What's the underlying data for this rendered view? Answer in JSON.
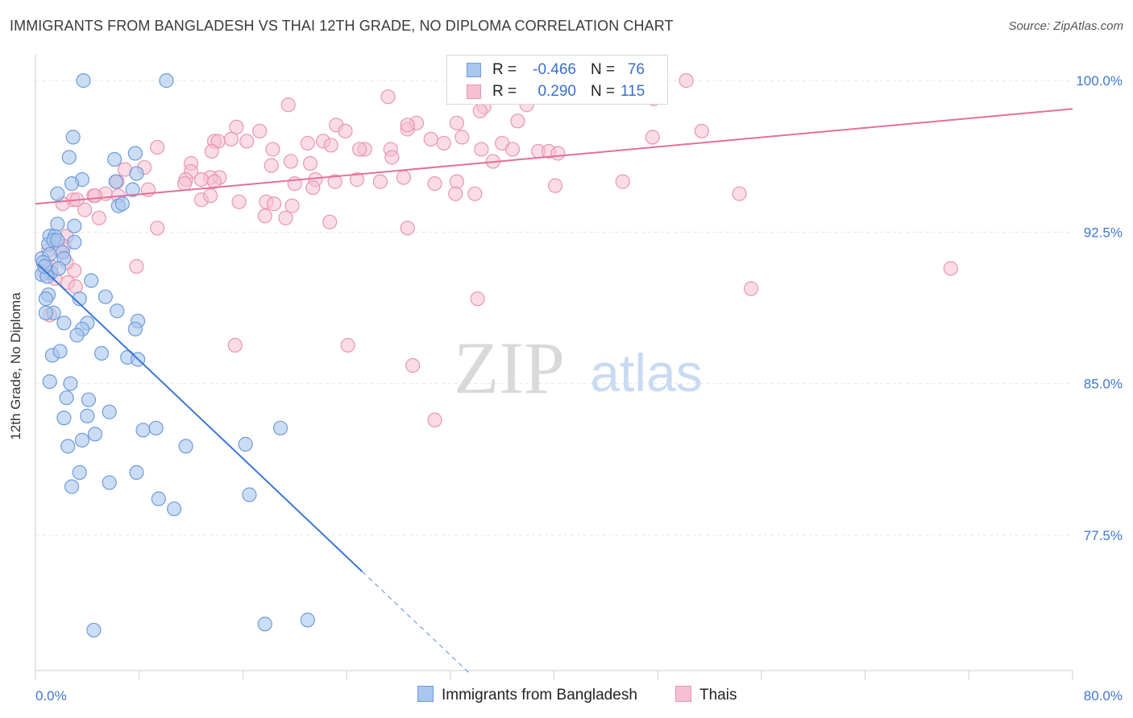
{
  "title": "IMMIGRANTS FROM BANGLADESH VS THAI 12TH GRADE, NO DIPLOMA CORRELATION CHART",
  "source": "Source: ZipAtlas.com",
  "watermark": {
    "zip": "ZIP",
    "atlas": "atlas"
  },
  "colors": {
    "blue_fill": "#a9c6ee",
    "blue_stroke": "#6f9bd9",
    "blue_line": "#3a78d4",
    "pink_fill": "#f6c0d2",
    "pink_stroke": "#e896b3",
    "pink_line": "#e4709a",
    "tick_label": "#3f76cf",
    "grid": "#e6e6e6"
  },
  "legend": {
    "rows": [
      {
        "series": "Immigrants from Bangladesh",
        "r_label": "R =",
        "r_value": "-0.466",
        "n_label": "N =",
        "n_value": "76"
      },
      {
        "series": "Thais",
        "r_label": "R =",
        "r_value": "0.290",
        "n_label": "N =",
        "n_value": "115"
      }
    ]
  },
  "chart_data": {
    "type": "scatter",
    "title": "IMMIGRANTS FROM BANGLADESH VS THAI 12TH GRADE, NO DIPLOMA CORRELATION CHART",
    "xlabel": "",
    "ylabel": "12th Grade, No Diploma",
    "xlim": [
      0,
      80
    ],
    "ylim": [
      70.8,
      101.2
    ],
    "x_tick_labels": [
      "0.0%",
      "80.0%"
    ],
    "y_ticks": [
      77.5,
      85.0,
      92.5,
      100.0
    ],
    "y_tick_labels": [
      "77.5%",
      "85.0%",
      "92.5%",
      "100.0%"
    ],
    "grid": "horizontal dashed",
    "legend_position": "bottom",
    "series": [
      {
        "name": "Immigrants from Bangladesh",
        "trend": {
          "x0": 0.2,
          "y0": 90.9,
          "x1": 25.2,
          "y1": 75.7,
          "dash_to_x": 33.6
        },
        "points": [
          [
            3.7,
            100
          ],
          [
            10.1,
            100
          ],
          [
            2.9,
            97.2
          ],
          [
            7.7,
            96.4
          ],
          [
            2.6,
            96.2
          ],
          [
            6.1,
            96.1
          ],
          [
            3.6,
            95.1
          ],
          [
            2.8,
            94.9
          ],
          [
            6.2,
            95.0
          ],
          [
            7.5,
            94.6
          ],
          [
            7.8,
            95.4
          ],
          [
            1.7,
            94.4
          ],
          [
            6.4,
            93.8
          ],
          [
            6.7,
            93.9
          ],
          [
            1.1,
            92.3
          ],
          [
            1.5,
            92.3
          ],
          [
            1.7,
            92.9
          ],
          [
            3.0,
            92.8
          ],
          [
            1.0,
            91.9
          ],
          [
            1.4,
            92.1
          ],
          [
            3.0,
            92.0
          ],
          [
            1.7,
            92.1
          ],
          [
            0.5,
            91.2
          ],
          [
            2.1,
            91.5
          ],
          [
            1.1,
            91.4
          ],
          [
            0.6,
            91.0
          ],
          [
            1.2,
            90.5
          ],
          [
            2.2,
            91.2
          ],
          [
            0.5,
            90.4
          ],
          [
            0.9,
            90.3
          ],
          [
            1.8,
            90.7
          ],
          [
            4.3,
            90.1
          ],
          [
            1.0,
            89.4
          ],
          [
            3.4,
            89.2
          ],
          [
            5.4,
            89.3
          ],
          [
            1.4,
            88.5
          ],
          [
            0.8,
            88.5
          ],
          [
            6.3,
            88.6
          ],
          [
            2.2,
            88.0
          ],
          [
            4.0,
            88.0
          ],
          [
            3.6,
            87.7
          ],
          [
            3.2,
            87.4
          ],
          [
            7.9,
            88.1
          ],
          [
            7.7,
            87.7
          ],
          [
            1.3,
            86.4
          ],
          [
            1.9,
            86.6
          ],
          [
            5.1,
            86.5
          ],
          [
            7.1,
            86.3
          ],
          [
            7.9,
            86.2
          ],
          [
            1.1,
            85.1
          ],
          [
            2.7,
            85.0
          ],
          [
            2.4,
            84.3
          ],
          [
            4.1,
            84.2
          ],
          [
            4.0,
            83.4
          ],
          [
            5.7,
            83.6
          ],
          [
            2.2,
            83.3
          ],
          [
            8.3,
            82.7
          ],
          [
            4.6,
            82.5
          ],
          [
            9.3,
            82.8
          ],
          [
            18.9,
            82.8
          ],
          [
            3.6,
            82.2
          ],
          [
            2.5,
            81.9
          ],
          [
            11.6,
            81.9
          ],
          [
            16.2,
            82.0
          ],
          [
            3.4,
            80.6
          ],
          [
            7.8,
            80.6
          ],
          [
            2.8,
            79.9
          ],
          [
            5.7,
            80.1
          ],
          [
            9.5,
            79.3
          ],
          [
            16.5,
            79.5
          ],
          [
            10.7,
            78.8
          ],
          [
            4.5,
            72.8
          ],
          [
            17.7,
            73.1
          ],
          [
            21.0,
            73.3
          ],
          [
            0.8,
            89.2
          ],
          [
            0.7,
            90.8
          ]
        ]
      },
      {
        "name": "Thais",
        "trend": {
          "x0": 0.0,
          "y0": 93.9,
          "x1": 80.0,
          "y1": 98.6
        },
        "points": [
          [
            32.6,
            100
          ],
          [
            37.7,
            100
          ],
          [
            50.2,
            100
          ],
          [
            47.7,
            99.1
          ],
          [
            36.6,
            99.7
          ],
          [
            34.6,
            98.7
          ],
          [
            19.5,
            98.8
          ],
          [
            27.2,
            99.2
          ],
          [
            28.7,
            97.6
          ],
          [
            32.9,
            97.2
          ],
          [
            37.9,
            98.8
          ],
          [
            34.3,
            98.5
          ],
          [
            37.2,
            98.0
          ],
          [
            32.5,
            97.9
          ],
          [
            29.4,
            97.9
          ],
          [
            28.7,
            97.8
          ],
          [
            23.2,
            97.8
          ],
          [
            23.9,
            97.5
          ],
          [
            15.5,
            97.7
          ],
          [
            17.3,
            97.5
          ],
          [
            16.3,
            97.0
          ],
          [
            18.3,
            96.6
          ],
          [
            21.0,
            96.9
          ],
          [
            22.2,
            97.0
          ],
          [
            22.8,
            96.8
          ],
          [
            25.4,
            96.6
          ],
          [
            27.4,
            96.6
          ],
          [
            30.5,
            97.1
          ],
          [
            31.5,
            96.9
          ],
          [
            34.4,
            96.6
          ],
          [
            36.0,
            96.9
          ],
          [
            36.8,
            96.6
          ],
          [
            38.8,
            96.5
          ],
          [
            39.6,
            96.5
          ],
          [
            40.3,
            96.4
          ],
          [
            47.6,
            97.2
          ],
          [
            51.4,
            97.5
          ],
          [
            25.0,
            96.6
          ],
          [
            9.4,
            96.7
          ],
          [
            13.8,
            97.0
          ],
          [
            14.1,
            97.0
          ],
          [
            15.1,
            97.1
          ],
          [
            13.6,
            96.5
          ],
          [
            27.5,
            96.2
          ],
          [
            35.3,
            96.0
          ],
          [
            12.0,
            95.9
          ],
          [
            18.2,
            95.8
          ],
          [
            19.7,
            96.0
          ],
          [
            21.2,
            95.9
          ],
          [
            8.4,
            95.7
          ],
          [
            6.9,
            95.6
          ],
          [
            12.0,
            95.5
          ],
          [
            14.2,
            95.2
          ],
          [
            13.5,
            95.2
          ],
          [
            11.6,
            95.1
          ],
          [
            21.6,
            95.1
          ],
          [
            24.8,
            95.1
          ],
          [
            28.4,
            95.2
          ],
          [
            6.3,
            95.0
          ],
          [
            11.5,
            94.9
          ],
          [
            12.8,
            95.1
          ],
          [
            13.8,
            95.0
          ],
          [
            20.0,
            94.9
          ],
          [
            23.1,
            95.0
          ],
          [
            26.6,
            95.0
          ],
          [
            30.8,
            94.9
          ],
          [
            32.5,
            95.0
          ],
          [
            45.3,
            95.0
          ],
          [
            40.1,
            94.8
          ],
          [
            8.7,
            94.6
          ],
          [
            4.5,
            94.3
          ],
          [
            5.4,
            94.4
          ],
          [
            6.4,
            94.3
          ],
          [
            2.9,
            94.1
          ],
          [
            3.2,
            94.1
          ],
          [
            4.6,
            94.3
          ],
          [
            12.8,
            94.1
          ],
          [
            15.7,
            94.0
          ],
          [
            13.5,
            94.3
          ],
          [
            17.8,
            94.0
          ],
          [
            18.4,
            93.9
          ],
          [
            19.8,
            93.8
          ],
          [
            21.4,
            94.7
          ],
          [
            32.4,
            94.4
          ],
          [
            33.9,
            94.4
          ],
          [
            54.3,
            94.4
          ],
          [
            2.1,
            93.9
          ],
          [
            3.8,
            93.6
          ],
          [
            4.9,
            93.2
          ],
          [
            17.7,
            93.3
          ],
          [
            19.3,
            93.2
          ],
          [
            22.7,
            93.0
          ],
          [
            28.7,
            92.7
          ],
          [
            9.4,
            92.7
          ],
          [
            2.4,
            92.3
          ],
          [
            2.2,
            91.8
          ],
          [
            7.8,
            90.8
          ],
          [
            1.2,
            90.8
          ],
          [
            1.5,
            90.2
          ],
          [
            2.5,
            90.0
          ],
          [
            3.1,
            89.8
          ],
          [
            70.6,
            90.7
          ],
          [
            55.2,
            89.7
          ],
          [
            34.1,
            89.2
          ],
          [
            15.4,
            86.9
          ],
          [
            24.1,
            86.9
          ],
          [
            29.1,
            85.9
          ],
          [
            30.8,
            83.2
          ],
          [
            1.1,
            88.4
          ],
          [
            1.0,
            91.6
          ],
          [
            0.7,
            90.5
          ],
          [
            1.9,
            91.6
          ],
          [
            3.0,
            90.6
          ],
          [
            0.8,
            90.9
          ],
          [
            2.4,
            91.0
          ]
        ]
      }
    ]
  }
}
